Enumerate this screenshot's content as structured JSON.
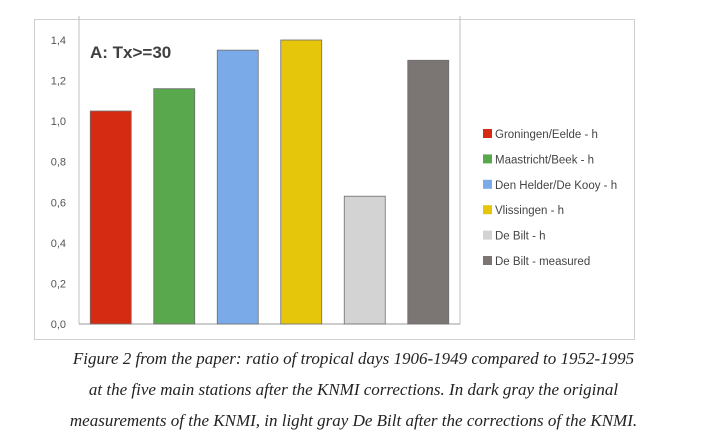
{
  "chart_data": {
    "type": "bar",
    "annotation": "A: Tx>=30",
    "categories": [
      "Groningen/Eelde - h",
      "Maastricht/Beek - h",
      "Den Helder/De Kooy - h",
      "Vlissingen - h",
      "De Bilt - h",
      "De Bilt - measured"
    ],
    "values": [
      1.05,
      1.16,
      1.35,
      1.4,
      0.63,
      1.3
    ],
    "colors": [
      "#d52b12",
      "#5aa84e",
      "#7aaae8",
      "#e6c60a",
      "#d3d3d3",
      "#7b7573"
    ],
    "ylim": [
      0,
      1.4
    ],
    "yticks": [
      0,
      0.2,
      0.4,
      0.6,
      0.8,
      1.0,
      1.2,
      1.4
    ],
    "ytick_labels": [
      "0,0",
      "0,2",
      "0,4",
      "0,6",
      "0,8",
      "1,0",
      "1,2",
      "1,4"
    ],
    "legend_position": "right",
    "grid": false
  },
  "caption": {
    "lines": [
      "Figure 2 from the paper: ratio of tropical days 1906-1949 compared to 1952-1995",
      "at the five main stations after the KNMI corrections. In dark gray the original",
      "measurements of the KNMI, in light gray De Bilt after the corrections of the KNMI."
    ]
  }
}
